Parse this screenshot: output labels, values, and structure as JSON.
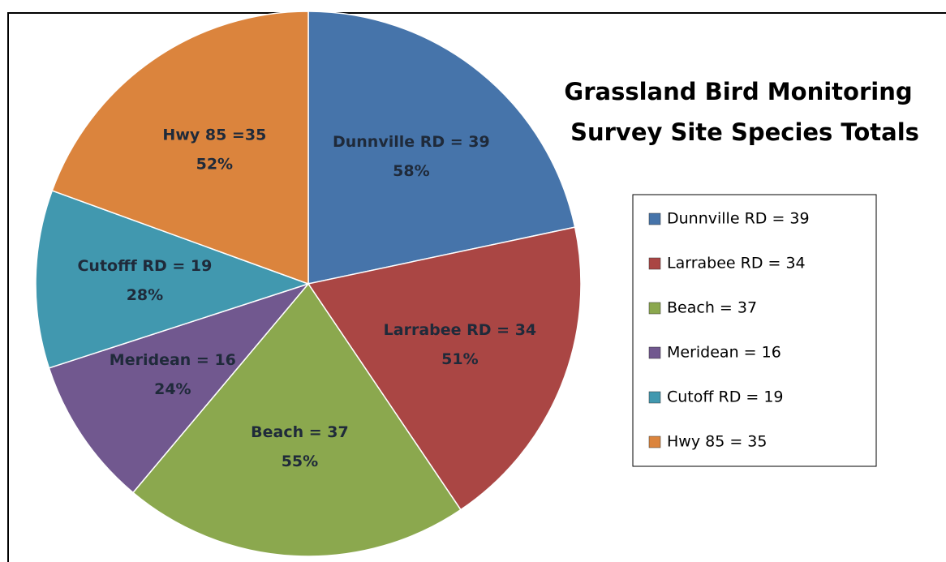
{
  "chart_data": {
    "type": "pie",
    "title": [
      "Grassland Bird Monitoring",
      "Survey Site Species Totals"
    ],
    "categories": [
      "Dunnville RD = 39",
      "Larrabee RD = 34",
      "Beach = 37",
      "Meridean = 16",
      "Cutoff RD = 19",
      "Hwy 85 = 35"
    ],
    "values": [
      39,
      34,
      37,
      16,
      19,
      35
    ],
    "slice_labels": [
      "Dunnville RD = 39",
      "Larrabee RD = 34",
      "Beach = 37",
      "Meridean = 16",
      "Cutofff RD = 19",
      "Hwy 85 =35"
    ],
    "percent_labels": [
      "58%",
      "51%",
      "55%",
      "24%",
      "28%",
      "52%"
    ],
    "colors": [
      "#4674aa",
      "#aa4644",
      "#8ba84e",
      "#71588f",
      "#4198af",
      "#db843d"
    ],
    "legend": "right"
  }
}
